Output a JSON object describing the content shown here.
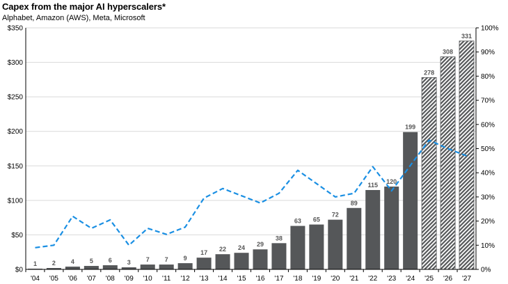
{
  "title": "Capex from the major AI hyperscalers*",
  "subtitle": "Alphabet, Amazon (AWS), Meta, Microsoft",
  "colors": {
    "bar": "#555759",
    "projected_hatch": "#555759",
    "line": "#1a8fe3",
    "grid": "#d9d9d9"
  },
  "chart_data": {
    "type": "bar",
    "title": "Capex from the major AI hyperscalers*",
    "subtitle": "Alphabet, Amazon (AWS), Meta, Microsoft",
    "categories": [
      "'04",
      "'05",
      "'06",
      "'07",
      "'08",
      "'09",
      "'10",
      "'11",
      "'12",
      "'13",
      "'14",
      "'15",
      "'16",
      "'17",
      "'18",
      "'19",
      "'20",
      "'21",
      "'22",
      "'23",
      "'24",
      "'25",
      "'26",
      "'27"
    ],
    "series": [
      {
        "type": "bar",
        "axis": "left",
        "values": [
          1,
          2,
          4,
          5,
          6,
          3,
          7,
          7,
          9,
          17,
          22,
          24,
          29,
          38,
          63,
          65,
          72,
          89,
          115,
          120,
          199,
          278,
          308,
          331
        ],
        "labels": [
          "1",
          "2",
          "4",
          "5",
          "6",
          "3",
          "7",
          "7",
          "9",
          "17",
          "22",
          "24",
          "29",
          "38",
          "63",
          "65",
          "72",
          "89",
          "115",
          "120",
          "199",
          "278",
          "308",
          "331"
        ],
        "projected_from": "'25"
      },
      {
        "type": "line",
        "axis": "right",
        "style": "dashed",
        "values": [
          9,
          10,
          22,
          17,
          20.5,
          10,
          17,
          14.5,
          17.5,
          29.5,
          33.5,
          30.5,
          27.5,
          31.5,
          41,
          35.5,
          30,
          31.5,
          42.5,
          32.5,
          43,
          53.5,
          50,
          47
        ]
      }
    ],
    "y_left": {
      "min": 0,
      "max": 350,
      "ticks": [
        "$0",
        "$50",
        "$100",
        "$150",
        "$200",
        "$250",
        "$300",
        "$350"
      ]
    },
    "y_right": {
      "min": 0,
      "max": 100,
      "ticks": [
        "0%",
        "10%",
        "20%",
        "30%",
        "40%",
        "50%",
        "60%",
        "70%",
        "80%",
        "90%",
        "100%"
      ]
    },
    "grid": true
  }
}
